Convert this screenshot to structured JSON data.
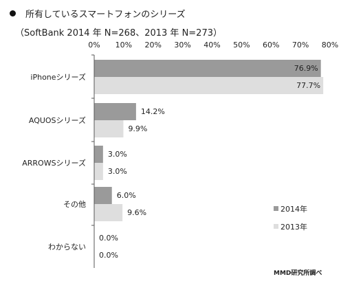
{
  "title": "所有しているスマートフォンのシリーズ",
  "subtitle": "（SoftBank 2014 年 N=268、2013 年 N=273）",
  "credit": "MMD研究所調べ",
  "colors": {
    "2014年": "#9a9a9a",
    "2013年": "#dedede",
    "axis": "#555555"
  },
  "chart_data": {
    "type": "bar",
    "orientation": "horizontal",
    "categories": [
      "iPhoneシリーズ",
      "AQUOSシリーズ",
      "ARROWSシリーズ",
      "その他",
      "わからない"
    ],
    "series": [
      {
        "name": "2014年",
        "values": [
          76.9,
          14.2,
          3.0,
          6.0,
          0.0
        ],
        "labels": [
          "76.9%",
          "14.2%",
          "3.0%",
          "6.0%",
          "0.0%"
        ]
      },
      {
        "name": "2013年",
        "values": [
          77.7,
          9.9,
          3.0,
          9.6,
          0.0
        ],
        "labels": [
          "77.7%",
          "9.9%",
          "3.0%",
          "9.6%",
          "0.0%"
        ]
      }
    ],
    "xlim": [
      0,
      80
    ],
    "xticks": [
      "0%",
      "10%",
      "20%",
      "30%",
      "40%",
      "50%",
      "60%",
      "70%",
      "80%"
    ],
    "xaxis_position": "top",
    "grid": false,
    "legend_position": "bottom-right"
  }
}
